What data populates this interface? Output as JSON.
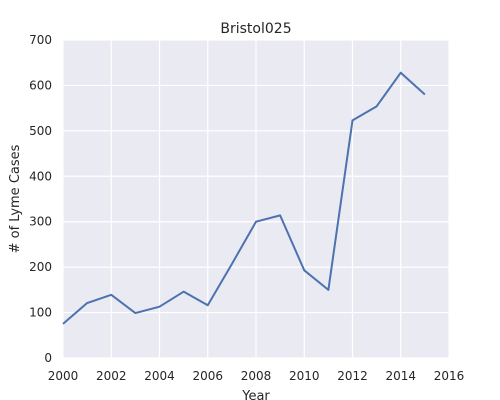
{
  "chart_data": {
    "type": "line",
    "title": "Bristol025",
    "xlabel": "Year",
    "ylabel": "# of Lyme Cases",
    "xlim": [
      2000,
      2016
    ],
    "ylim": [
      0,
      700
    ],
    "x_ticks": [
      "2000",
      "2002",
      "2004",
      "2006",
      "2008",
      "2010",
      "2012",
      "2014",
      "2016"
    ],
    "y_ticks": [
      "0",
      "100",
      "200",
      "300",
      "400",
      "500",
      "600",
      "700"
    ],
    "grid": true,
    "series": [
      {
        "x": [
          2000,
          2001,
          2002,
          2003,
          2004,
          2005,
          2006,
          2007,
          2008,
          2009,
          2010,
          2011,
          2012,
          2013,
          2014,
          2015
        ],
        "values": [
          75,
          121,
          139,
          99,
          113,
          146,
          116,
          207,
          300,
          314,
          193,
          150,
          523,
          554,
          628,
          580
        ]
      }
    ],
    "colors": {
      "background": "#EAEAF2",
      "grid": "#FFFFFF",
      "line": "#4C72B0"
    }
  }
}
